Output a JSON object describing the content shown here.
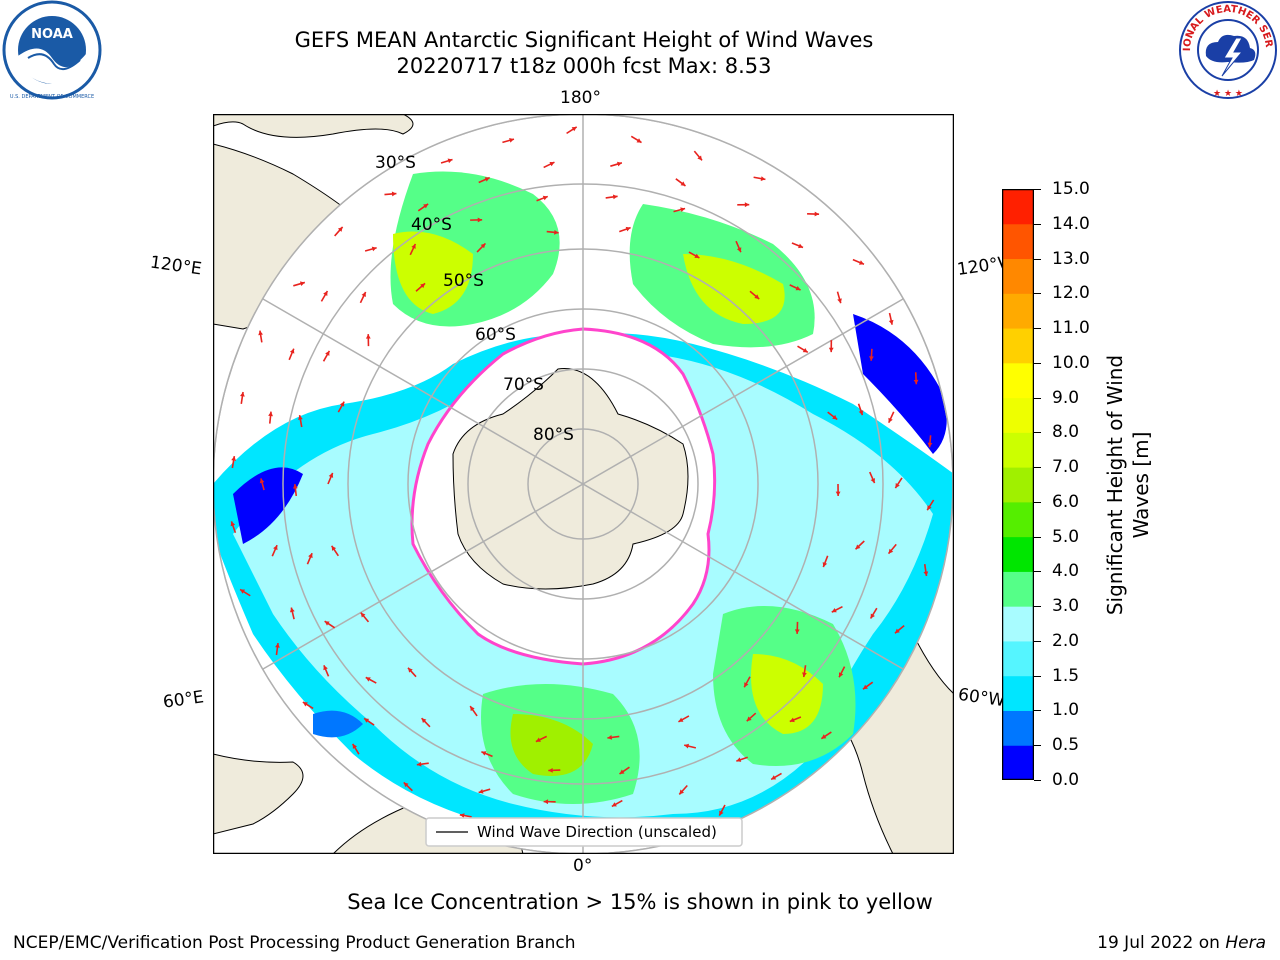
{
  "title": {
    "line1": "GEFS MEAN Antarctic Significant Height of Wind Waves",
    "line2": "20220717 t18z 000h fcst   Max: 8.53"
  },
  "logos": {
    "left": {
      "name": "noaa-logo",
      "text": "NOAA",
      "ring_text": "NATIONAL OCEANIC AND ATMOSPHERIC ADMINISTRATION · U.S. DEPARTMENT OF COMMERCE",
      "colors": [
        "#1a5aa6",
        "#ffffff"
      ]
    },
    "right": {
      "name": "nws-logo",
      "ring_text": "NATIONAL WEATHER SERVICE",
      "colors": [
        "#d7191c",
        "#1a3fa6",
        "#ffffff"
      ]
    }
  },
  "map": {
    "projection": "south-polar-stereographic",
    "lat_labels": [
      "30°S",
      "40°S",
      "50°S",
      "60°S",
      "70°S",
      "80°S"
    ],
    "lon_labels": {
      "top": "180°",
      "bottom": "0°",
      "upper_left": "120°E",
      "upper_right": "120°W",
      "lower_left": "60°E",
      "lower_right": "60°W"
    },
    "legend": "Wind Wave Direction (unscaled)",
    "colors": {
      "land": "#efebdc",
      "ocean_none": "#ffffff",
      "grid": "#b0b0b0",
      "arrow": "#e8231e",
      "ice_edge": "#ff44cc",
      "ice_inner": "#ffb000"
    }
  },
  "colorbar": {
    "label": "Significant Height of Wind Waves [m]",
    "label_lines": [
      "Significant Height of Wind",
      "Waves [m]"
    ],
    "ticks": [
      "15.0",
      "14.0",
      "13.0",
      "12.0",
      "11.0",
      "10.0",
      "9.0",
      "8.0",
      "7.0",
      "6.0",
      "5.0",
      "4.0",
      "3.0",
      "2.0",
      "1.5",
      "1.0",
      "0.5",
      "0.0"
    ],
    "levels": [
      0.0,
      0.5,
      1.0,
      1.5,
      2.0,
      3.0,
      4.0,
      5.0,
      6.0,
      7.0,
      8.0,
      9.0,
      10.0,
      11.0,
      12.0,
      13.0,
      14.0,
      15.0
    ],
    "colors": [
      "#0000ff",
      "#0077ff",
      "#00e6ff",
      "#55f5ff",
      "#a8fcff",
      "#55ff88",
      "#00e600",
      "#55ee00",
      "#a0f000",
      "#ccff00",
      "#eeff00",
      "#ffff00",
      "#ffd000",
      "#ffaa00",
      "#ff8800",
      "#ff5500",
      "#ff2000"
    ]
  },
  "sea_ice_note": "Sea Ice Concentration > 15% is shown in pink to yellow",
  "footer": {
    "left": "NCEP/EMC/Verification Post Processing Product Generation Branch",
    "right_date": "19 Jul 2022 on ",
    "right_host": "Hera"
  }
}
